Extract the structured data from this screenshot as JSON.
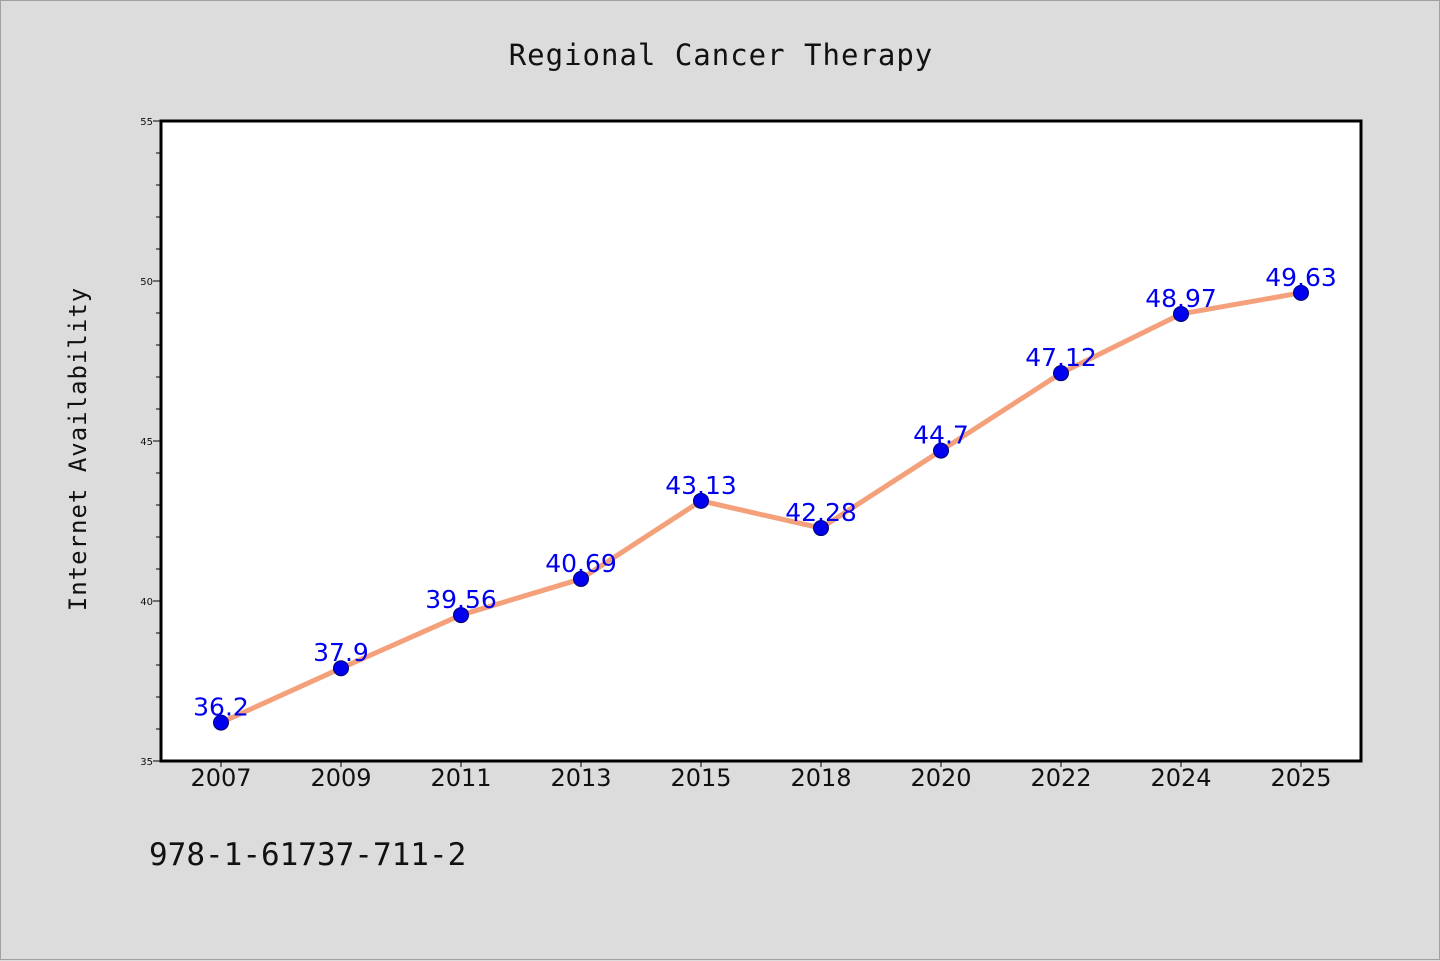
{
  "chart_data": {
    "type": "line",
    "title": "Regional Cancer Therapy",
    "xlabel": "",
    "ylabel": "Internet Availability",
    "categories": [
      "2007",
      "2009",
      "2011",
      "2013",
      "2015",
      "2018",
      "2020",
      "2022",
      "2024",
      "2025"
    ],
    "series": [
      {
        "values": [
          36.2,
          37.9,
          39.56,
          40.69,
          43.13,
          42.28,
          44.7,
          47.12,
          48.97,
          49.63
        ],
        "labels": [
          "36.2",
          "37.9",
          "39.56",
          "40.69",
          "43.13",
          "42.28",
          "44.7",
          "47.12",
          "48.97",
          "49.63"
        ]
      }
    ],
    "ylim": [
      35,
      55
    ],
    "yticks": [
      35,
      40,
      45,
      50,
      55
    ],
    "grid": false,
    "colors": {
      "line": "#f4a07a",
      "marker": "#0000ee",
      "data_label": "#0000ee",
      "plot_background": "#ffffff",
      "figure_background": "#dcdcdc"
    }
  },
  "footer": {
    "isbn": "978-1-61737-711-2"
  }
}
